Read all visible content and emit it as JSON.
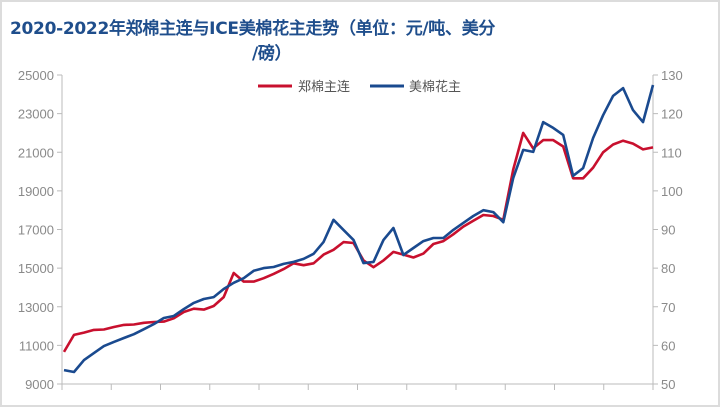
{
  "chart_data": {
    "type": "line",
    "title": "2020-2022年郑棉主连与ICE美棉花主走势（单位：元/吨、美分/磅）",
    "title_line1": "2020-2022年郑棉主连与ICE美棉花主走势（单位：元/吨、美分",
    "title_line2": "/磅）",
    "legend_position": "top-center",
    "grid": false,
    "x_tick_count": 13,
    "y_left": {
      "ylim": [
        9000,
        25000
      ],
      "ticks": [
        "9000",
        "11000",
        "13000",
        "15000",
        "17000",
        "19000",
        "21000",
        "23000",
        "25000"
      ]
    },
    "y_right": {
      "ylim": [
        50,
        130
      ],
      "ticks": [
        "50",
        "60",
        "70",
        "80",
        "90",
        "100",
        "110",
        "120",
        "130"
      ]
    },
    "series": [
      {
        "name": "郑棉主连",
        "axis": "left",
        "color": "#c8102e",
        "values": [
          10660,
          11540,
          11660,
          11800,
          11820,
          11950,
          12060,
          12080,
          12170,
          12210,
          12230,
          12400,
          12730,
          12900,
          12850,
          13040,
          13500,
          14750,
          14300,
          14300,
          14480,
          14700,
          14950,
          15250,
          15150,
          15250,
          15700,
          15950,
          16350,
          16300,
          15400,
          15050,
          15400,
          15840,
          15700,
          15550,
          15750,
          16250,
          16400,
          16750,
          17150,
          17450,
          17750,
          17700,
          17500,
          20100,
          22000,
          21200,
          21630,
          21630,
          21300,
          19650,
          19650,
          20200,
          21000,
          21400,
          21600,
          21450,
          21150,
          21250
        ]
      },
      {
        "name": "美棉花主",
        "axis": "right",
        "color": "#1a4a8f",
        "values": [
          53.6,
          53.1,
          56.2,
          58.0,
          59.8,
          60.9,
          61.9,
          62.9,
          64.2,
          65.5,
          67.1,
          67.6,
          69.4,
          71.0,
          72.0,
          72.5,
          74.6,
          76.2,
          77.4,
          79.3,
          80.0,
          80.3,
          81.1,
          81.6,
          82.4,
          83.7,
          86.8,
          92.5,
          89.9,
          87.3,
          81.3,
          81.6,
          87.3,
          90.4,
          83.4,
          85.2,
          87.0,
          87.8,
          87.8,
          89.9,
          91.7,
          93.5,
          95.0,
          94.5,
          91.9,
          103.3,
          110.6,
          110.1,
          117.8,
          116.3,
          114.5,
          103.9,
          105.9,
          113.7,
          119.6,
          124.6,
          126.6,
          120.9,
          117.8,
          127.4
        ]
      }
    ]
  }
}
